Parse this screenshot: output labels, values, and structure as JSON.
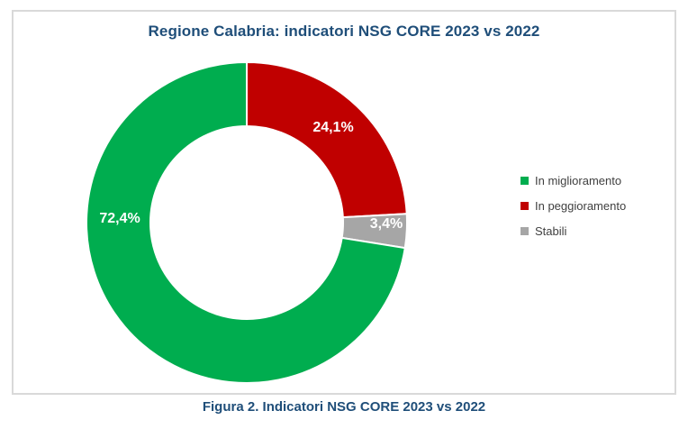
{
  "title": "Regione Calabria:  indicatori NSG CORE 2023 vs 2022",
  "caption": "Figura 2. Indicatori NSG CORE 2023 vs 2022",
  "colors": {
    "title_text": "#1F4E79",
    "caption_text": "#1F4E79",
    "frame_border": "#D9D9D9",
    "legend_text": "#404040",
    "slice_label_text": "#FFFFFF",
    "slice_separator": "#FFFFFF",
    "background": "#FFFFFF"
  },
  "chart_data": {
    "type": "pie",
    "subtype": "donut",
    "title": "Regione Calabria:  indicatori NSG CORE 2023 vs 2022",
    "slices": [
      {
        "label": "In miglioramento",
        "value": 72.4,
        "display_label": "72,4%",
        "color": "#00AD4F"
      },
      {
        "label": "In peggioramento",
        "value": 24.1,
        "display_label": "24,1%",
        "color": "#C00000"
      },
      {
        "label": "Stabili",
        "value": 3.4,
        "display_label": "3,4%",
        "color": "#A6A6A6"
      }
    ],
    "legend_position": "right",
    "hole_ratio": 0.6,
    "start_angle_deg": 0,
    "direction": "clockwise",
    "clockwise_draw_order": [
      "In peggioramento",
      "Stabili",
      "In miglioramento"
    ]
  }
}
